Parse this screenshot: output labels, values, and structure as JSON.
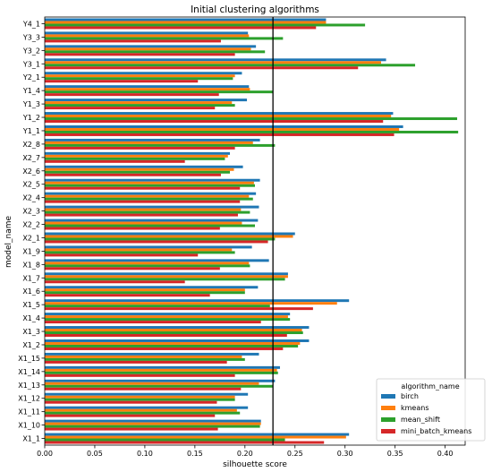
{
  "chart_data": {
    "type": "bar",
    "orientation": "horizontal",
    "title": "Initial clustering algorithms",
    "xlabel": "silhouette score",
    "ylabel": "model_name",
    "xlim": [
      0,
      0.42
    ],
    "xticks": [
      "0.00",
      "0.05",
      "0.10",
      "0.15",
      "0.20",
      "0.25",
      "0.30",
      "0.35",
      "0.40"
    ],
    "reference_line_x": 0.228,
    "categories": [
      "Y4_1",
      "Y3_3",
      "Y3_2",
      "Y3_1",
      "Y2_1",
      "Y1_4",
      "Y1_3",
      "Y1_2",
      "Y1_1",
      "X2_8",
      "X2_7",
      "X2_6",
      "X2_5",
      "X2_4",
      "X2_3",
      "X2_2",
      "X2_1",
      "X1_9",
      "X1_8",
      "X1_7",
      "X1_6",
      "X1_5",
      "X1_4",
      "X1_3",
      "X1_2",
      "X1_15",
      "X1_14",
      "X1_13",
      "X1_12",
      "X1_11",
      "X1_10",
      "X1_1"
    ],
    "series": [
      {
        "name": "birch",
        "color": "#1f77b4",
        "values": [
          0.281,
          0.203,
          0.211,
          0.341,
          0.197,
          0.204,
          0.202,
          0.348,
          0.358,
          0.215,
          0.185,
          0.198,
          0.215,
          0.211,
          0.214,
          0.213,
          0.25,
          0.207,
          0.224,
          0.243,
          0.213,
          0.304,
          0.245,
          0.264,
          0.264,
          0.214,
          0.235,
          0.23,
          0.203,
          0.203,
          0.216,
          0.304
        ]
      },
      {
        "name": "kmeans",
        "color": "#ff7f0e",
        "values": [
          0.281,
          0.204,
          0.206,
          0.336,
          0.19,
          0.205,
          0.187,
          0.346,
          0.354,
          0.208,
          0.183,
          0.189,
          0.209,
          0.204,
          0.196,
          0.197,
          0.248,
          0.187,
          0.204,
          0.243,
          0.2,
          0.292,
          0.243,
          0.257,
          0.255,
          0.197,
          0.232,
          0.214,
          0.19,
          0.192,
          0.216,
          0.301
        ]
      },
      {
        "name": "mean_shift",
        "color": "#2ca02c",
        "values": [
          0.32,
          0.238,
          0.22,
          0.37,
          0.188,
          0.228,
          0.19,
          0.412,
          0.413,
          0.23,
          0.18,
          0.185,
          0.21,
          0.208,
          0.205,
          0.21,
          0.23,
          0.19,
          0.205,
          0.24,
          0.2,
          0.225,
          0.245,
          0.258,
          0.253,
          0.2,
          0.233,
          0.228,
          0.19,
          0.195,
          0.215,
          0.24
        ]
      },
      {
        "name": "mini_batch_kmeans",
        "color": "#d62728",
        "values": [
          0.271,
          0.176,
          0.19,
          0.313,
          0.153,
          0.174,
          0.17,
          0.338,
          0.349,
          0.19,
          0.14,
          0.176,
          0.195,
          0.195,
          0.193,
          0.175,
          0.223,
          0.153,
          0.175,
          0.14,
          0.165,
          0.268,
          0.216,
          0.242,
          0.238,
          0.182,
          0.19,
          0.196,
          0.172,
          0.17,
          0.173,
          0.279
        ]
      }
    ],
    "legend": {
      "title": "algorithm_name",
      "placement": "lower-right"
    },
    "grid": false
  }
}
